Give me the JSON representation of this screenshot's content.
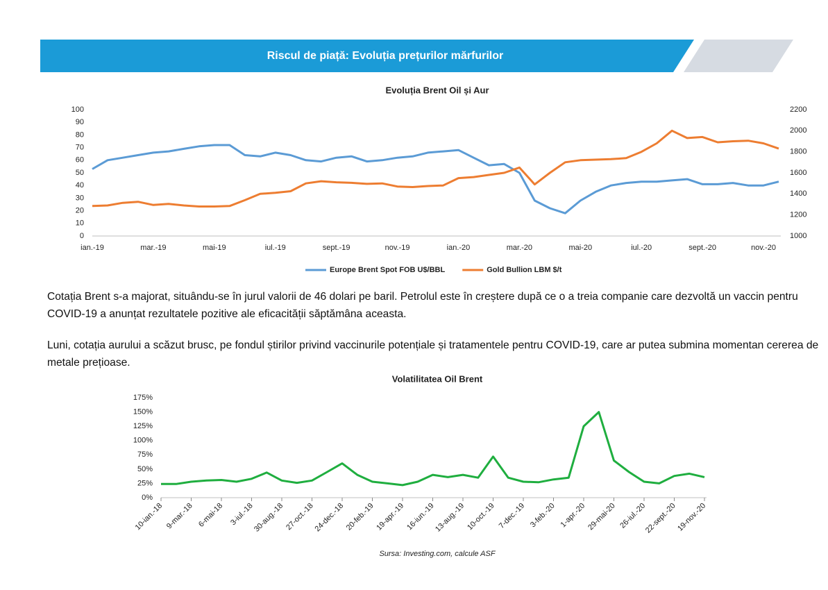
{
  "header": {
    "title": "Riscul de piață: Evoluția prețurilor mărfurilor"
  },
  "chart_data": [
    {
      "type": "line",
      "title": "Evoluția Brent Oil și Aur",
      "categories": [
        "ian.-19",
        null,
        null,
        null,
        "mar.-19",
        null,
        null,
        null,
        "mai-19",
        null,
        null,
        null,
        "iul.-19",
        null,
        null,
        null,
        "sept.-19",
        null,
        null,
        null,
        "nov.-19",
        null,
        null,
        null,
        "ian.-20",
        null,
        null,
        null,
        "mar.-20",
        null,
        null,
        null,
        "mai-20",
        null,
        null,
        null,
        "iul.-20",
        null,
        null,
        null,
        "sept.-20",
        null,
        null,
        null,
        "nov.-20",
        null
      ],
      "series": [
        {
          "name": "Europe Brent Spot FOB U$/BBL",
          "color": "#5b9bd5",
          "values": [
            53,
            60,
            62,
            64,
            66,
            67,
            69,
            71,
            72,
            72,
            64,
            63,
            66,
            64,
            60,
            59,
            62,
            63,
            59,
            60,
            62,
            63,
            66,
            67,
            68,
            62,
            56,
            57,
            50,
            28,
            22,
            18,
            28,
            35,
            40,
            42,
            43,
            43,
            44,
            45,
            41,
            41,
            42,
            40,
            40,
            43
          ]
        },
        {
          "name": "Gold Bullion LBM $/t",
          "color": "#ed7d31",
          "axis": "y2",
          "values": [
            1285,
            1290,
            1315,
            1325,
            1295,
            1305,
            1290,
            1280,
            1280,
            1285,
            1340,
            1400,
            1410,
            1425,
            1500,
            1520,
            1510,
            1505,
            1495,
            1500,
            1470,
            1465,
            1475,
            1480,
            1550,
            1560,
            1580,
            1600,
            1650,
            1490,
            1600,
            1700,
            1720,
            1725,
            1730,
            1740,
            1800,
            1880,
            2000,
            1930,
            1940,
            1890,
            1900,
            1905,
            1880,
            1830
          ]
        }
      ],
      "ylim": [
        0,
        100
      ],
      "yticks": [
        0,
        10,
        20,
        30,
        40,
        50,
        60,
        70,
        80,
        90,
        100
      ],
      "y2lim": [
        1000,
        2200
      ],
      "y2ticks": [
        1000,
        1200,
        1400,
        1600,
        1800,
        2000,
        2200
      ],
      "grid": false,
      "legend": "bottom"
    },
    {
      "type": "line",
      "title": "Volatilitatea Oil Brent",
      "categories": [
        "10-ian.-18",
        null,
        "9-mar.-18",
        null,
        "6-mai-18",
        null,
        "3-iul.-18",
        null,
        "30-aug.-18",
        null,
        "27-oct.-18",
        null,
        "24-dec.-18",
        null,
        "20-feb.-19",
        null,
        "19-apr.-19",
        null,
        "16-iun.-19",
        null,
        "13-aug.-19",
        null,
        "10-oct.-19",
        null,
        "7-dec.-19",
        null,
        "3-feb.-20",
        null,
        "1-apr.-20",
        null,
        "29-mai-20",
        null,
        "26-iul.-20",
        null,
        "22-sept.-20",
        null,
        "19-nov.-20"
      ],
      "values": [
        24,
        24,
        28,
        30,
        31,
        28,
        33,
        44,
        30,
        26,
        30,
        45,
        60,
        40,
        28,
        25,
        22,
        28,
        40,
        36,
        40,
        35,
        72,
        35,
        28,
        27,
        32,
        35,
        125,
        150,
        65,
        45,
        28,
        25,
        38,
        42,
        36
      ],
      "color": "#1fae3f",
      "ylim": [
        0,
        175
      ],
      "yticks": [
        {
          "value": 0,
          "label": "0%"
        },
        {
          "value": 25,
          "label": "25%"
        },
        {
          "value": 50,
          "label": "50%"
        },
        {
          "value": 75,
          "label": "75%"
        },
        {
          "value": 100,
          "label": "100%"
        },
        {
          "value": 125,
          "label": "125%"
        },
        {
          "value": 150,
          "label": "150%"
        },
        {
          "value": 175,
          "label": "175%"
        }
      ],
      "grid": false
    }
  ],
  "paragraphs": [
    "Cotația Brent s-a majorat, situându-se în jurul valorii de 46 dolari pe baril. Petrolul este în creștere după ce o a treia companie care dezvoltă un vaccin pentru COVID-19 a anunțat rezultatele pozitive ale eficacității săptămâna aceasta.",
    "Luni, cotația aurului a scăzut brusc, pe fondul știrilor privind vaccinurile potențiale și tratamentele pentru COVID-19, care ar putea submina momentan cererea de metale prețioase."
  ],
  "source": "Sursa: Investing.com, calcule ASF"
}
